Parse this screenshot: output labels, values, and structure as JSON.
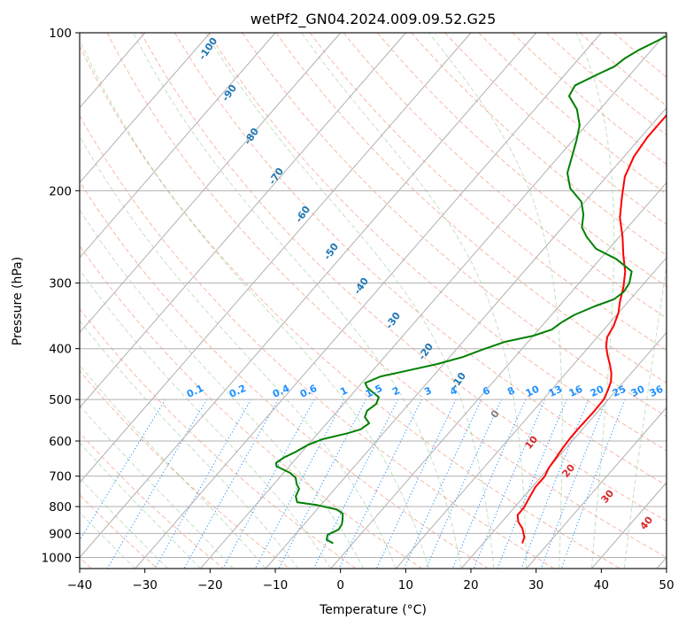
{
  "chart_data": {
    "type": "line",
    "title": "wetPf2_GN04.2024.009.09.52.G25",
    "xlabel": "Temperature (°C)",
    "ylabel": "Pressure (hPa)",
    "xlim": [
      -40,
      50
    ],
    "ylim": [
      1050,
      100
    ],
    "y_scale": "log",
    "grid": true,
    "x_ticks": [
      -40,
      -30,
      -20,
      -10,
      0,
      10,
      20,
      30,
      40,
      50
    ],
    "y_ticks": [
      100,
      200,
      300,
      400,
      500,
      600,
      700,
      800,
      900,
      1000
    ],
    "skew_deg_per_decade": 70,
    "series": [
      {
        "color": "#ff0000",
        "points": [
          [
            26.0,
            940
          ],
          [
            25.5,
            915
          ],
          [
            24.0,
            880
          ],
          [
            22.5,
            855
          ],
          [
            21.5,
            830
          ],
          [
            21.5,
            805
          ],
          [
            21.0,
            770
          ],
          [
            20.5,
            735
          ],
          [
            20.5,
            700
          ],
          [
            20.0,
            675
          ],
          [
            19.8,
            650
          ],
          [
            19.5,
            620
          ],
          [
            19.3,
            590
          ],
          [
            19.3,
            560
          ],
          [
            19.4,
            530
          ],
          [
            19.3,
            500
          ],
          [
            18.7,
            480
          ],
          [
            18.0,
            462
          ],
          [
            17.0,
            446
          ],
          [
            15.5,
            428
          ],
          [
            14.0,
            412
          ],
          [
            12.5,
            395
          ],
          [
            11.5,
            380
          ],
          [
            11.0,
            362
          ],
          [
            10.0,
            342
          ],
          [
            8.7,
            325
          ],
          [
            7.3,
            305
          ],
          [
            5.5,
            285
          ],
          [
            3.0,
            265
          ],
          [
            0.5,
            245
          ],
          [
            -2.5,
            225
          ],
          [
            -5.0,
            205
          ],
          [
            -7.2,
            188
          ],
          [
            -8.5,
            172
          ],
          [
            -9.0,
            158
          ],
          [
            -9.0,
            146
          ],
          [
            -9.0,
            135
          ],
          [
            -9.6,
            126
          ],
          [
            -11.0,
            118
          ],
          [
            -13.5,
            111
          ],
          [
            -15.0,
            106
          ],
          [
            -16.0,
            102
          ],
          [
            -16.5,
            100
          ]
        ]
      },
      {
        "color": "#008000",
        "points": [
          [
            -3.0,
            940
          ],
          [
            -4.5,
            925
          ],
          [
            -5.0,
            905
          ],
          [
            -4.0,
            885
          ],
          [
            -4.2,
            865
          ],
          [
            -4.8,
            845
          ],
          [
            -5.5,
            825
          ],
          [
            -7.0,
            810
          ],
          [
            -10.5,
            795
          ],
          [
            -14.0,
            785
          ],
          [
            -15.0,
            765
          ],
          [
            -15.5,
            740
          ],
          [
            -16.5,
            725
          ],
          [
            -17.5,
            705
          ],
          [
            -19.0,
            690
          ],
          [
            -20.5,
            680
          ],
          [
            -22.0,
            670
          ],
          [
            -22.5,
            660
          ],
          [
            -22.0,
            645
          ],
          [
            -21.0,
            630
          ],
          [
            -20.0,
            610
          ],
          [
            -18.5,
            595
          ],
          [
            -15.5,
            580
          ],
          [
            -14.0,
            570
          ],
          [
            -13.5,
            555
          ],
          [
            -15.0,
            540
          ],
          [
            -15.5,
            525
          ],
          [
            -15.0,
            510
          ],
          [
            -15.5,
            495
          ],
          [
            -17.0,
            485
          ],
          [
            -18.5,
            475
          ],
          [
            -19.5,
            465
          ],
          [
            -18.0,
            452
          ],
          [
            -14.5,
            440
          ],
          [
            -11.0,
            428
          ],
          [
            -8.0,
            415
          ],
          [
            -6.0,
            402
          ],
          [
            -3.5,
            388
          ],
          [
            0.0,
            378
          ],
          [
            2.0,
            368
          ],
          [
            2.5,
            357
          ],
          [
            3.5,
            345
          ],
          [
            5.5,
            332
          ],
          [
            7.5,
            322
          ],
          [
            8.0,
            312
          ],
          [
            7.7,
            300
          ],
          [
            6.5,
            285
          ],
          [
            2.5,
            270
          ],
          [
            -2.0,
            258
          ],
          [
            -5.0,
            245
          ],
          [
            -7.0,
            235
          ],
          [
            -8.5,
            222
          ],
          [
            -10.5,
            210
          ],
          [
            -14.0,
            198
          ],
          [
            -16.5,
            185
          ],
          [
            -18.0,
            172
          ],
          [
            -19.5,
            160
          ],
          [
            -21.0,
            150
          ],
          [
            -23.5,
            140
          ],
          [
            -26.5,
            132
          ],
          [
            -27.0,
            126
          ],
          [
            -25.0,
            120
          ],
          [
            -23.5,
            116
          ],
          [
            -23.0,
            112
          ],
          [
            -22.0,
            108
          ],
          [
            -20.5,
            104
          ],
          [
            -19.0,
            100
          ]
        ]
      }
    ],
    "dry_adiabat_labels": [
      "-100",
      "-90",
      "-80",
      "-70",
      "-60",
      "-50",
      "-40",
      "-30",
      "-20",
      "-10"
    ],
    "moist_adiabat_labels": [
      "0",
      "10",
      "20",
      "30",
      "40"
    ],
    "mixing_ratio_labels": [
      "0.1",
      "0.2",
      "0.4",
      "0.6",
      "1",
      "1.5",
      "2",
      "3",
      "4",
      "6",
      "8",
      "10",
      "13",
      "16",
      "20",
      "25",
      "30",
      "36"
    ]
  }
}
